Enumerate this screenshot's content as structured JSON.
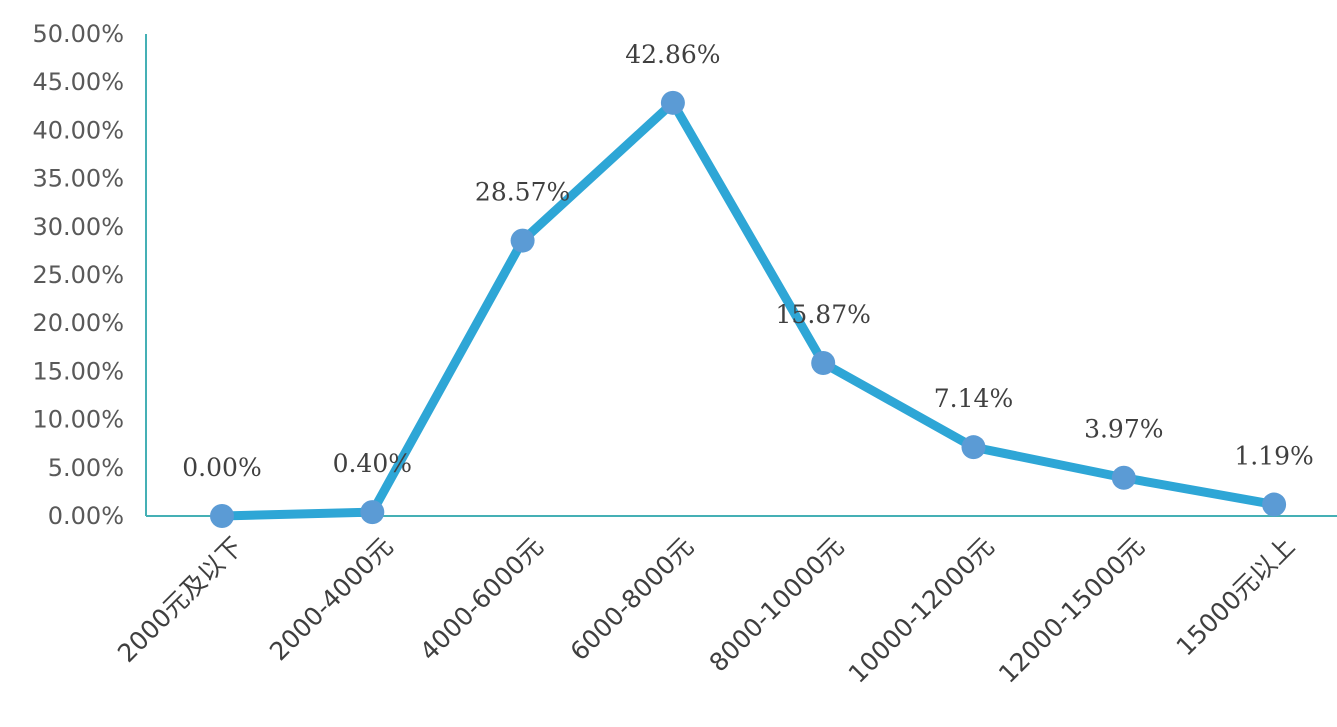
{
  "chart_data": {
    "type": "line",
    "title": "",
    "xlabel": "",
    "ylabel": "",
    "categories": [
      "2000元及以下",
      "2000-4000元",
      "4000-6000元",
      "6000-8000元",
      "8000-10000元",
      "10000-12000元",
      "12000-15000元",
      "15000元以上"
    ],
    "series": [
      {
        "values": [
          0.0,
          0.4,
          28.57,
          42.86,
          15.87,
          7.14,
          3.97,
          1.19
        ],
        "data_labels": [
          "0.00%",
          "0.40%",
          "28.57%",
          "42.86%",
          "15.87%",
          "7.14%",
          "3.97%",
          "1.19%"
        ]
      }
    ],
    "y_unit": "%",
    "ylim": [
      0,
      50
    ],
    "y_ticks": [
      0,
      5,
      10,
      15,
      20,
      25,
      30,
      35,
      40,
      45,
      50
    ],
    "y_tick_labels": [
      "0.00%",
      "5.00%",
      "10.00%",
      "15.00%",
      "20.00%",
      "25.00%",
      "30.00%",
      "35.00%",
      "40.00%",
      "45.00%",
      "50.00%"
    ],
    "grid": false,
    "legend": "none"
  },
  "colors": {
    "line": "#2ea6d6",
    "marker": "#5b9bd5",
    "axis": "#45b0b5",
    "tick_text": "#595959",
    "category_text": "#3f3f3f",
    "data_label_text": "#404040"
  }
}
